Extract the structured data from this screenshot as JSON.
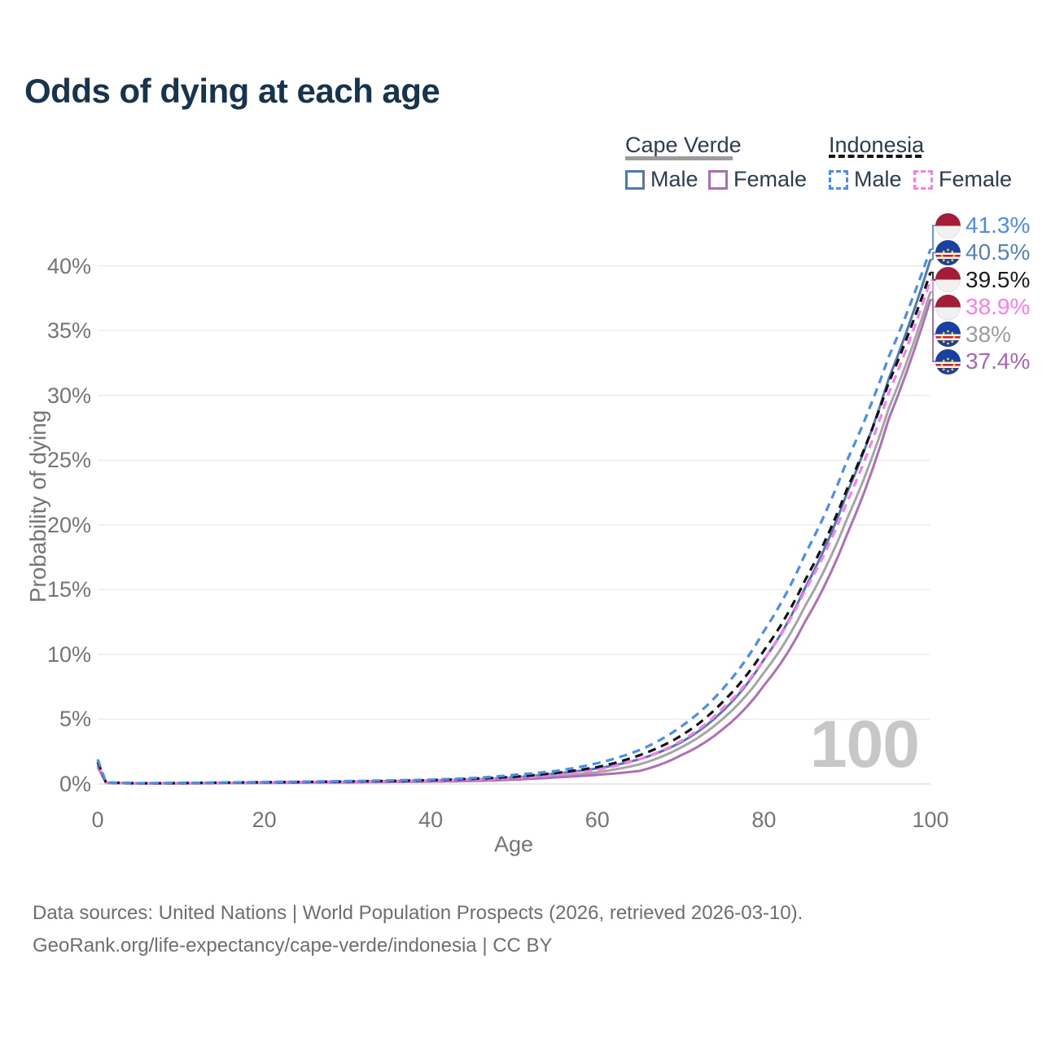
{
  "title": "Odds of dying at each age",
  "legend": {
    "groups": [
      {
        "label": "Cape Verde",
        "line_style": "solid",
        "underline_color": "#9c9c9c",
        "items": [
          {
            "label": "Male",
            "color": "#4d79b5"
          },
          {
            "label": "Female",
            "color": "#ad6cb5"
          }
        ]
      },
      {
        "label": "Indonesia",
        "line_style": "dashed",
        "underline_color": "#161616",
        "items": [
          {
            "label": "Male",
            "color": "#4a8df0"
          },
          {
            "label": "Female",
            "color": "#fb7deb"
          }
        ]
      }
    ]
  },
  "chart_data": {
    "type": "line",
    "title": "Odds of dying at each age",
    "xlabel": "Age",
    "ylabel": "Probability of dying",
    "xlim": [
      0,
      100
    ],
    "ylim": [
      0,
      43
    ],
    "xticks": [
      0,
      20,
      40,
      60,
      80,
      100
    ],
    "yticks": [
      "0%",
      "5%",
      "10%",
      "15%",
      "20%",
      "25%",
      "30%",
      "35%",
      "40%"
    ],
    "grid": "horizontal",
    "x": [
      0,
      1,
      5,
      10,
      15,
      20,
      25,
      30,
      35,
      40,
      45,
      50,
      55,
      60,
      65,
      70,
      75,
      80,
      85,
      90,
      95,
      100
    ],
    "series": [
      {
        "name": "Indonesia Male",
        "color": "#4a8df0",
        "dash": true,
        "values": [
          1.9,
          0.12,
          0.06,
          0.08,
          0.11,
          0.15,
          0.18,
          0.22,
          0.27,
          0.33,
          0.45,
          0.7,
          1.0,
          1.6,
          2.6,
          4.4,
          7.3,
          11.8,
          17.8,
          25.0,
          33.0,
          41.3
        ]
      },
      {
        "name": "Cape Verde Male",
        "color": "#4d79b5",
        "dash": false,
        "values": [
          1.5,
          0.1,
          0.05,
          0.06,
          0.09,
          0.12,
          0.15,
          0.18,
          0.22,
          0.27,
          0.35,
          0.5,
          0.8,
          1.2,
          1.9,
          3.2,
          5.6,
          9.6,
          15.2,
          22.5,
          31.3,
          40.5
        ]
      },
      {
        "name": "Indonesia Both sexes",
        "color": "#141414",
        "dash": true,
        "values": [
          1.7,
          0.11,
          0.05,
          0.07,
          0.1,
          0.13,
          0.16,
          0.19,
          0.23,
          0.29,
          0.4,
          0.55,
          0.85,
          1.3,
          2.2,
          3.7,
          6.3,
          10.3,
          15.8,
          22.8,
          31.0,
          39.5
        ]
      },
      {
        "name": "Indonesia Female",
        "color": "#fb7deb",
        "dash": true,
        "values": [
          1.5,
          0.1,
          0.05,
          0.06,
          0.08,
          0.11,
          0.13,
          0.16,
          0.19,
          0.25,
          0.33,
          0.45,
          0.7,
          1.1,
          1.9,
          3.3,
          5.8,
          9.6,
          15.0,
          21.8,
          30.2,
          38.9
        ]
      },
      {
        "name": "Cape Verde Both sexes",
        "color": "#a5a5a5",
        "dash": false,
        "values": [
          1.4,
          0.09,
          0.04,
          0.05,
          0.07,
          0.1,
          0.12,
          0.15,
          0.18,
          0.22,
          0.28,
          0.4,
          0.6,
          0.9,
          1.5,
          2.8,
          5.0,
          8.6,
          13.8,
          20.5,
          29.0,
          38.0
        ]
      },
      {
        "name": "Cape Verde Female",
        "color": "#ae6fb5",
        "dash": false,
        "values": [
          1.3,
          0.08,
          0.04,
          0.04,
          0.06,
          0.08,
          0.1,
          0.12,
          0.15,
          0.18,
          0.23,
          0.33,
          0.5,
          0.7,
          1.0,
          2.2,
          4.2,
          7.6,
          12.6,
          19.3,
          28.2,
          37.4
        ]
      }
    ],
    "end_labels": [
      {
        "value": "41.3%",
        "num": 41.3,
        "color": "#4a8df0",
        "flag": "indonesia",
        "series": "Indonesia Male"
      },
      {
        "value": "40.5%",
        "num": 40.5,
        "color": "#5581bd",
        "flag": "cape-verde",
        "series": "Cape Verde Male"
      },
      {
        "value": "39.5%",
        "num": 39.5,
        "color": "#1c1c1c",
        "flag": "indonesia",
        "series": "Indonesia Both sexes"
      },
      {
        "value": "38.9%",
        "num": 38.9,
        "color": "#fb7deb",
        "flag": "indonesia",
        "series": "Indonesia Female"
      },
      {
        "value": "38%",
        "num": 38.0,
        "color": "#9c9c9c",
        "flag": "cape-verde",
        "series": "Cape Verde Both sexes"
      },
      {
        "value": "37.4%",
        "num": 37.4,
        "color": "#a965b5",
        "flag": "cape-verde",
        "series": "Cape Verde Female"
      }
    ],
    "legend_position": "top-right",
    "watermark": "100"
  },
  "watermark": "100",
  "footer": {
    "line1": "Data sources: United Nations | World Population Prospects (2026, retrieved 2026-03-10).",
    "line2": "GeoRank.org/life-expectancy/cape-verde/indonesia | CC BY"
  }
}
